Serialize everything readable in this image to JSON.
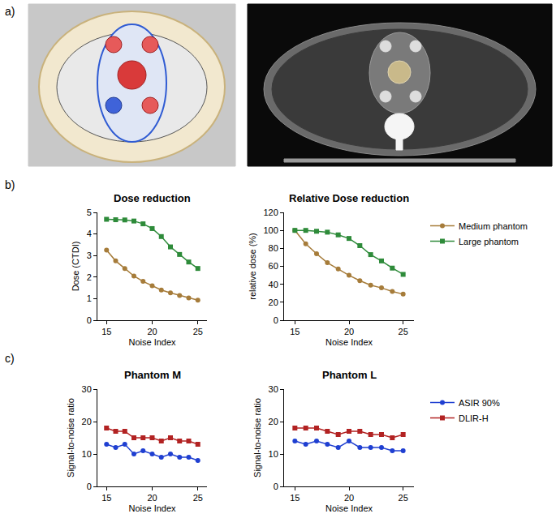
{
  "panel_labels": [
    "a)",
    "b)",
    "c)"
  ],
  "chart_data": [
    {
      "type": "line",
      "title": "Dose reduction",
      "x_label": "Noise Index",
      "y_label": "Dose (CTDI)",
      "x": [
        15,
        16,
        17,
        18,
        19,
        20,
        21,
        22,
        23,
        24,
        25
      ],
      "xlim": [
        14,
        26
      ],
      "xticks": [
        15,
        20,
        25
      ],
      "ylim": [
        0,
        5
      ],
      "yticks": [
        0,
        1,
        2,
        3,
        4,
        5
      ],
      "grid": false,
      "series": [
        {
          "name": "Medium phantom",
          "color": "#a67c3a",
          "marker": "circle",
          "line_style": "solid",
          "values": [
            3.25,
            2.75,
            2.4,
            2.05,
            1.8,
            1.6,
            1.4,
            1.27,
            1.15,
            1.03,
            0.93
          ]
        },
        {
          "name": "Large phantom",
          "color": "#2e8b3a",
          "marker": "square",
          "line_style": "solid",
          "values": [
            4.68,
            4.66,
            4.65,
            4.6,
            4.47,
            4.25,
            3.88,
            3.4,
            3.05,
            2.7,
            2.4
          ]
        }
      ]
    },
    {
      "type": "line",
      "title": "Relative Dose reduction",
      "x_label": "Noise Index",
      "y_label": "relative dose (%)",
      "x": [
        15,
        16,
        17,
        18,
        19,
        20,
        21,
        22,
        23,
        24,
        25
      ],
      "xlim": [
        14,
        26
      ],
      "xticks": [
        15,
        20,
        25
      ],
      "ylim": [
        0,
        120
      ],
      "yticks": [
        0,
        20,
        40,
        60,
        80,
        100,
        120
      ],
      "grid": false,
      "legend": "right",
      "series": [
        {
          "name": "Medium phantom",
          "color": "#a67c3a",
          "marker": "circle",
          "line_style": "solid",
          "values": [
            100,
            85,
            74,
            64,
            57,
            50,
            44,
            39,
            36,
            32,
            29
          ]
        },
        {
          "name": "Large phantom",
          "color": "#2e8b3a",
          "marker": "square",
          "line_style": "solid",
          "values": [
            100,
            100,
            99,
            98,
            95,
            91,
            83,
            73,
            66,
            58,
            51
          ]
        }
      ]
    },
    {
      "type": "line",
      "title": "Phantom M",
      "x_label": "Noise Index",
      "y_label": "Signal-to-noise ratio",
      "x": [
        15,
        16,
        17,
        18,
        19,
        20,
        21,
        22,
        23,
        24,
        25
      ],
      "xlim": [
        14,
        26
      ],
      "xticks": [
        15,
        20,
        25
      ],
      "ylim": [
        0,
        30
      ],
      "yticks": [
        0,
        10,
        20,
        30
      ],
      "grid": false,
      "series": [
        {
          "name": "ASIR 90%",
          "color": "#1f3fd1",
          "marker": "circle",
          "line_style": "solid",
          "values": [
            13,
            12,
            13,
            10,
            11,
            10,
            9,
            10,
            9,
            9,
            8
          ]
        },
        {
          "name": "DLIR-H",
          "color": "#b22222",
          "marker": "square",
          "line_style": "solid",
          "values": [
            18,
            17,
            17,
            15,
            15,
            15,
            14,
            15,
            14,
            14,
            13
          ]
        }
      ]
    },
    {
      "type": "line",
      "title": "Phantom L",
      "x_label": "Noise Index",
      "y_label": "Signal-to-noise ratio",
      "x": [
        15,
        16,
        17,
        18,
        19,
        20,
        21,
        22,
        23,
        24,
        25
      ],
      "xlim": [
        14,
        26
      ],
      "xticks": [
        15,
        20,
        25
      ],
      "ylim": [
        0,
        30
      ],
      "yticks": [
        0,
        10,
        20,
        30
      ],
      "grid": false,
      "legend": "right",
      "series": [
        {
          "name": "ASIR 90%",
          "color": "#1f3fd1",
          "marker": "circle",
          "line_style": "solid",
          "values": [
            14,
            13,
            14,
            13,
            12,
            14,
            12,
            12,
            12,
            11,
            11
          ]
        },
        {
          "name": "DLIR-H",
          "color": "#b22222",
          "marker": "square",
          "line_style": "solid",
          "values": [
            18,
            18,
            18,
            17,
            16,
            17,
            17,
            16,
            16,
            15,
            16
          ]
        }
      ]
    }
  ]
}
